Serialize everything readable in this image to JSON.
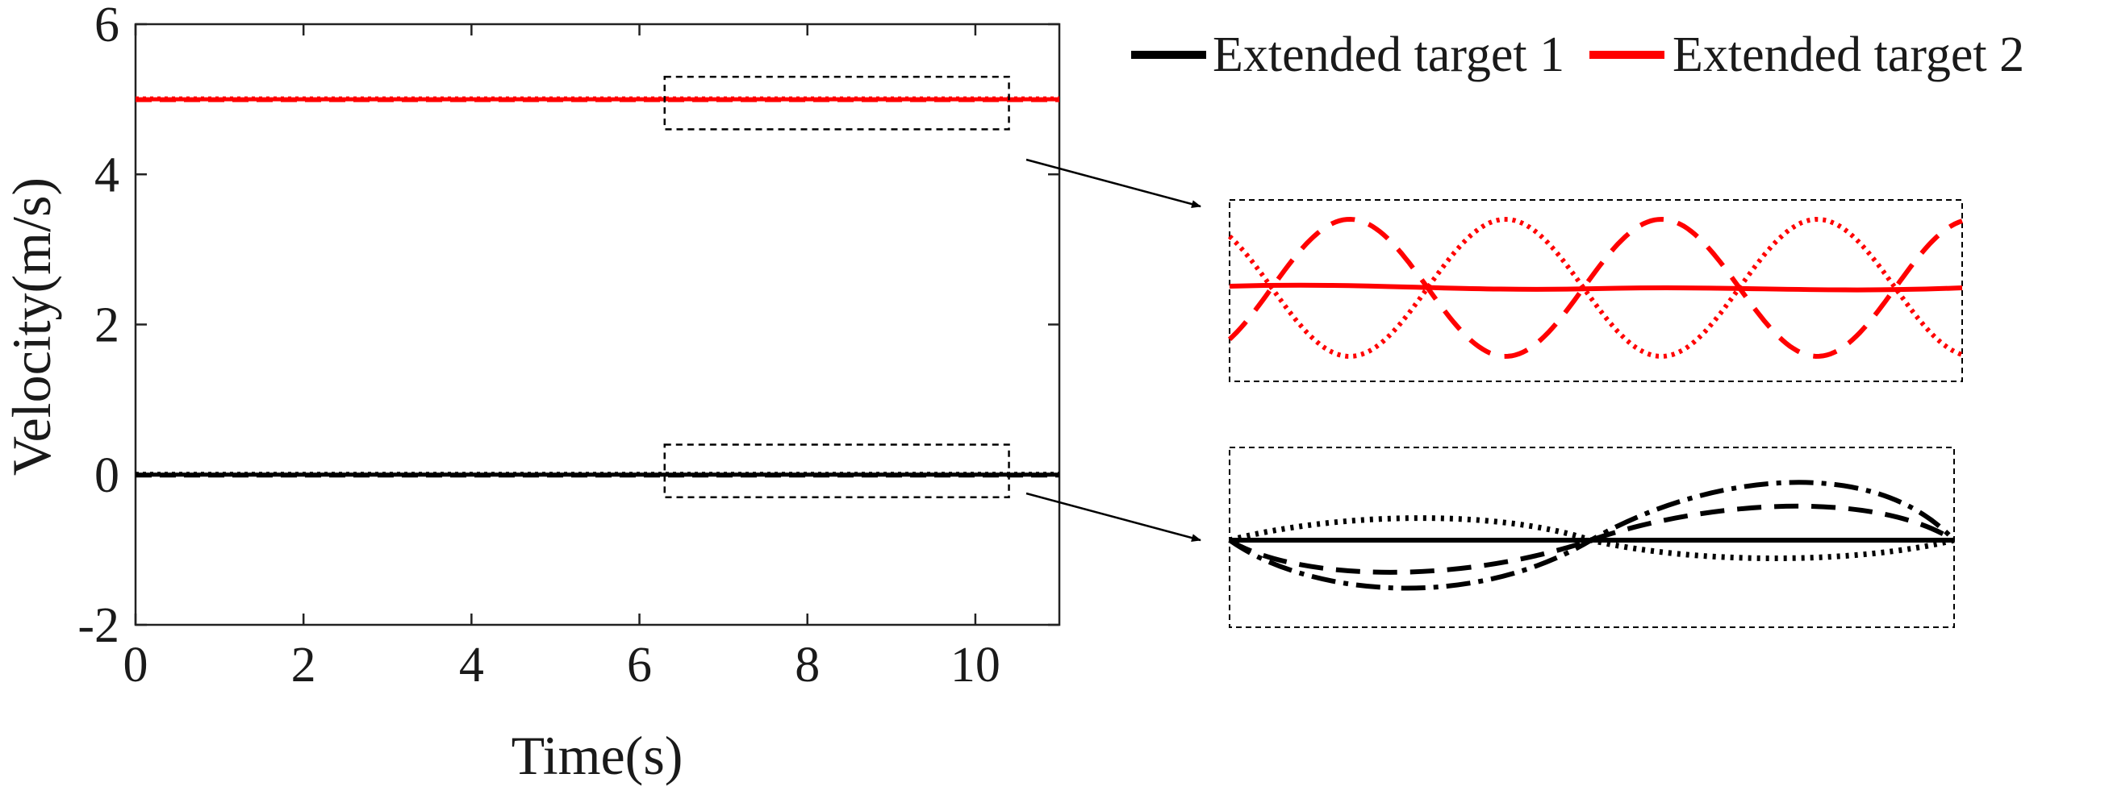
{
  "chart_data": {
    "type": "line",
    "xlabel": "Time(s)",
    "ylabel": "Velocity(m/s)",
    "xlim": [
      0,
      11
    ],
    "ylim": [
      -2,
      6
    ],
    "x_ticks": [
      0,
      2,
      4,
      6,
      8,
      10
    ],
    "y_ticks": [
      -2,
      0,
      2,
      4,
      6
    ],
    "x_tick_labels": [
      "0",
      "2",
      "4",
      "6",
      "8",
      "10"
    ],
    "y_tick_labels": [
      "-2",
      "0",
      "2",
      "4",
      "6"
    ],
    "grid": false,
    "legend_position": "top-right, outside",
    "series": [
      {
        "name": "Extended target 1",
        "color": "#000000",
        "x": [
          0,
          11
        ],
        "values": [
          0,
          0
        ]
      },
      {
        "name": "Extended target 2",
        "color": "#ff0000",
        "x": [
          0,
          11
        ],
        "values": [
          5,
          5
        ]
      }
    ],
    "zoom_regions": [
      {
        "target": "Extended target 2",
        "xrange": [
          6.3,
          10.4
        ],
        "yrange": [
          4.6,
          5.3
        ],
        "color": "#ff0000"
      },
      {
        "target": "Extended target 1",
        "xrange": [
          6.3,
          10.4
        ],
        "yrange": [
          -0.3,
          0.4
        ],
        "color": "#000000"
      }
    ]
  }
}
